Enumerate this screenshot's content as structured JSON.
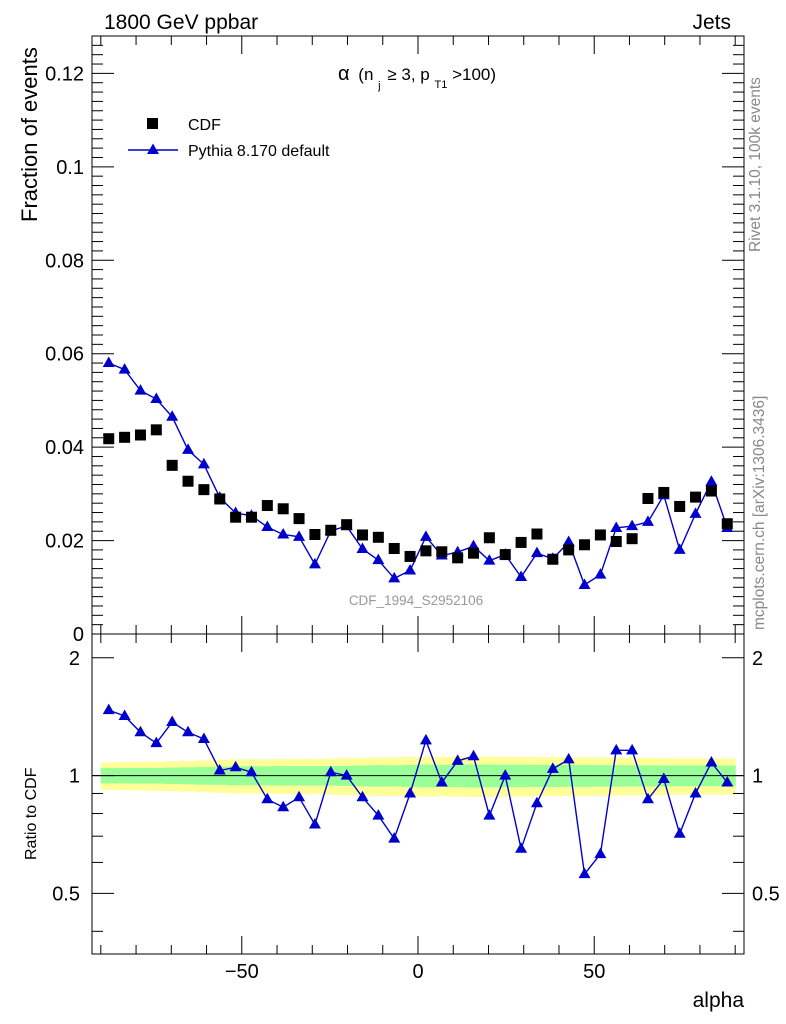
{
  "header": {
    "left": "1800 GeV ppbar",
    "right": "Jets"
  },
  "side_labels": {
    "rivet": "Rivet 3.1.10,  100k events",
    "mcplots": "mcplots.cern.ch [arXiv:1306.3436]"
  },
  "colors": {
    "cdf": "#000000",
    "pythia": "#0000cc",
    "band_inner": "#99ff99",
    "band_outer": "#ffff99"
  },
  "chart_data": [
    {
      "type": "scatter",
      "title": "α (n_j ≥ 3, p_T1 >100)",
      "title_parts": {
        "greek": "α",
        "open": "(n",
        "sub_j": "j",
        "ge": "≥ 3, p",
        "sub_t1": "T1",
        "close": ">100)"
      },
      "watermark": "CDF_1994_S2952106",
      "ylabel": "Fraction of events",
      "xlabel": "alpha",
      "ylim": [
        0,
        0.128
      ],
      "xlim": [
        -92.5,
        92.5
      ],
      "yticks": [
        0,
        0.02,
        0.04,
        0.06,
        0.08,
        0.1,
        0.12
      ],
      "ytick_labels": [
        "0",
        "0.02",
        "0.04",
        "0.06",
        "0.08",
        "0.1",
        "0.12"
      ],
      "legend_position": "top-left",
      "x": [
        -87.75,
        -83.25,
        -78.75,
        -74.25,
        -69.75,
        -65.25,
        -60.75,
        -56.25,
        -51.75,
        -47.25,
        -42.75,
        -38.25,
        -33.75,
        -29.25,
        -24.75,
        -20.25,
        -15.75,
        -11.25,
        -6.75,
        -2.25,
        2.25,
        6.75,
        11.25,
        15.75,
        20.25,
        24.75,
        29.25,
        33.75,
        38.25,
        42.75,
        47.25,
        51.75,
        56.25,
        60.75,
        65.25,
        69.75,
        74.25,
        78.75,
        83.25,
        87.75
      ],
      "series": [
        {
          "name": "CDF",
          "marker": "square",
          "values": [
            0.0418,
            0.0421,
            0.0426,
            0.0437,
            0.0361,
            0.0327,
            0.0309,
            0.0289,
            0.025,
            0.025,
            0.0275,
            0.0268,
            0.0247,
            0.0213,
            0.0222,
            0.0234,
            0.0212,
            0.0207,
            0.0183,
            0.0166,
            0.0178,
            0.0176,
            0.0163,
            0.0173,
            0.0206,
            0.017,
            0.0196,
            0.0214,
            0.016,
            0.018,
            0.0191,
            0.0212,
            0.0198,
            0.0204,
            0.029,
            0.0303,
            0.0273,
            0.0293,
            0.0306,
            0.0236
          ]
        },
        {
          "name": "Pythia 8.170 default",
          "marker": "triangle",
          "values": [
            0.058,
            0.0566,
            0.0521,
            0.0503,
            0.0465,
            0.0394,
            0.0363,
            0.0292,
            0.0259,
            0.0253,
            0.0229,
            0.0213,
            0.0208,
            0.0149,
            0.0221,
            0.0231,
            0.0182,
            0.0158,
            0.0119,
            0.0136,
            0.0208,
            0.0168,
            0.0175,
            0.0188,
            0.0157,
            0.017,
            0.0122,
            0.0173,
            0.0161,
            0.0197,
            0.0105,
            0.0127,
            0.0227,
            0.0231,
            0.024,
            0.0297,
            0.018,
            0.0257,
            0.0326,
            0.0227
          ]
        }
      ]
    },
    {
      "type": "line",
      "ylabel": "Ratio to CDF",
      "xlabel": "alpha",
      "ylim": [
        0.35,
        2.3
      ],
      "yticks": [
        0.5,
        1,
        2
      ],
      "ytick_labels": [
        "0.5",
        "1",
        "2"
      ],
      "xticks": [
        -50,
        0,
        50
      ],
      "xtick_labels": [
        "−50",
        "0",
        "50"
      ],
      "reference": 1,
      "band_inner_halfwidth": [
        0.045,
        0.045,
        0.046,
        0.046,
        0.048,
        0.05,
        0.052,
        0.053,
        0.056,
        0.056,
        0.056,
        0.057,
        0.057,
        0.057,
        0.058,
        0.059,
        0.061,
        0.063,
        0.062,
        0.064,
        0.067,
        0.065,
        0.066,
        0.068,
        0.067,
        0.066,
        0.066,
        0.065,
        0.065,
        0.064,
        0.064,
        0.063,
        0.063,
        0.062,
        0.062,
        0.061,
        0.061,
        0.061,
        0.061,
        0.06
      ],
      "band_outer_halfwidth": [
        0.08,
        0.082,
        0.084,
        0.086,
        0.088,
        0.09,
        0.093,
        0.097,
        0.1,
        0.1,
        0.1,
        0.103,
        0.104,
        0.104,
        0.105,
        0.108,
        0.11,
        0.112,
        0.113,
        0.115,
        0.117,
        0.115,
        0.117,
        0.118,
        0.118,
        0.117,
        0.116,
        0.115,
        0.114,
        0.113,
        0.113,
        0.112,
        0.111,
        0.11,
        0.109,
        0.108,
        0.107,
        0.107,
        0.106,
        0.106
      ],
      "series": [
        {
          "name": "Pythia 8.170 default",
          "values": [
            1.47,
            1.42,
            1.29,
            1.21,
            1.37,
            1.29,
            1.24,
            1.03,
            1.05,
            1.02,
            0.87,
            0.83,
            0.88,
            0.75,
            1.02,
            1.0,
            0.88,
            0.79,
            0.69,
            0.9,
            1.23,
            0.96,
            1.09,
            1.12,
            0.79,
            1.0,
            0.65,
            0.85,
            1.04,
            1.1,
            0.56,
            0.63,
            1.16,
            1.16,
            0.87,
            0.98,
            0.71,
            0.9,
            1.08,
            0.96
          ]
        }
      ]
    }
  ]
}
